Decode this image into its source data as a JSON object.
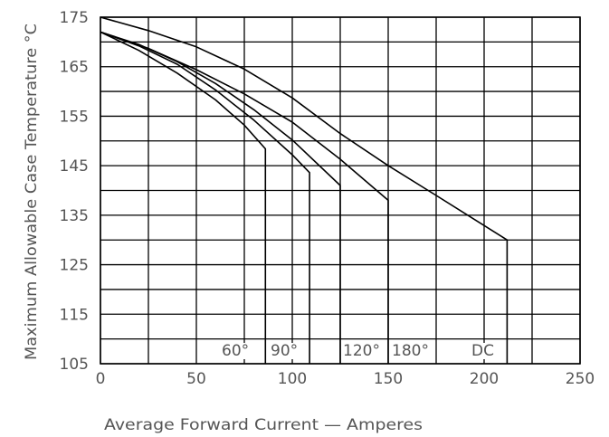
{
  "chart_data": {
    "type": "line",
    "title": "",
    "xlabel": "Average Forward Current — Amperes",
    "ylabel": "Maximum Allowable Case Temperature °C",
    "xlim": [
      0,
      250
    ],
    "ylim": [
      105,
      175
    ],
    "x_ticks": [
      0,
      50,
      100,
      150,
      200,
      250
    ],
    "y_ticks": [
      105,
      115,
      125,
      135,
      145,
      155,
      165,
      175
    ],
    "grid": true,
    "series": [
      {
        "label": "60°",
        "x": [
          0,
          20,
          40,
          60,
          75,
          86,
          86
        ],
        "y": [
          172,
          168.3,
          163.7,
          158.3,
          153.2,
          148.4,
          105
        ]
      },
      {
        "label": "90°",
        "x": [
          0,
          20,
          40,
          60,
          80,
          100,
          109,
          109
        ],
        "y": [
          172,
          169.2,
          165.5,
          160.3,
          154.2,
          147.2,
          143.6,
          105
        ]
      },
      {
        "label": "120°",
        "x": [
          0,
          20,
          40,
          60,
          80,
          100,
          125,
          125
        ],
        "y": [
          172,
          169.5,
          166,
          161.6,
          156.3,
          150.2,
          141,
          105
        ]
      },
      {
        "label": "180°",
        "x": [
          0,
          25,
          50,
          75,
          100,
          125,
          150,
          150
        ],
        "y": [
          172,
          168.7,
          164.4,
          159.5,
          153.8,
          146.3,
          138,
          105
        ]
      },
      {
        "label": "DC",
        "x": [
          0,
          25,
          50,
          75,
          100,
          125,
          150,
          175,
          212,
          212
        ],
        "y": [
          175,
          172.3,
          169,
          164.5,
          158.7,
          151.5,
          145,
          139,
          130,
          105
        ]
      }
    ]
  }
}
